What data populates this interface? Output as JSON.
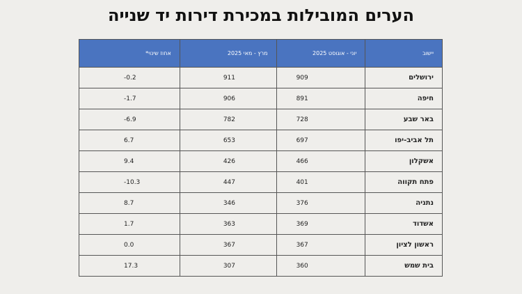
{
  "title": "הערים המובילות במכירת דירות יד שנייה",
  "table": {
    "header": [
      "יישוב",
      "יוני - אוגוסט 2025",
      "מרץ - מאי 2025",
      "אחוז שינוי*"
    ],
    "rows": [
      [
        "ירושלים",
        "909",
        "911",
        "-0.2"
      ],
      [
        "חיפה",
        "891",
        "906",
        "-1.7"
      ],
      [
        "באר שבע",
        "728",
        "782",
        "-6.9"
      ],
      [
        "תל אביב-יפו",
        "697",
        "653",
        "6.7"
      ],
      [
        "אשקלון",
        "466",
        "426",
        "9.4"
      ],
      [
        "פתח תקווה",
        "401",
        "447",
        "-10.3"
      ],
      [
        "נתניה",
        "376",
        "346",
        "8.7"
      ],
      [
        "אשדוד",
        "369",
        "363",
        "1.7"
      ],
      [
        "ראשון לציון",
        "367",
        "367",
        "0.0"
      ],
      [
        "בית שמש",
        "360",
        "307",
        "17.3"
      ]
    ]
  }
}
